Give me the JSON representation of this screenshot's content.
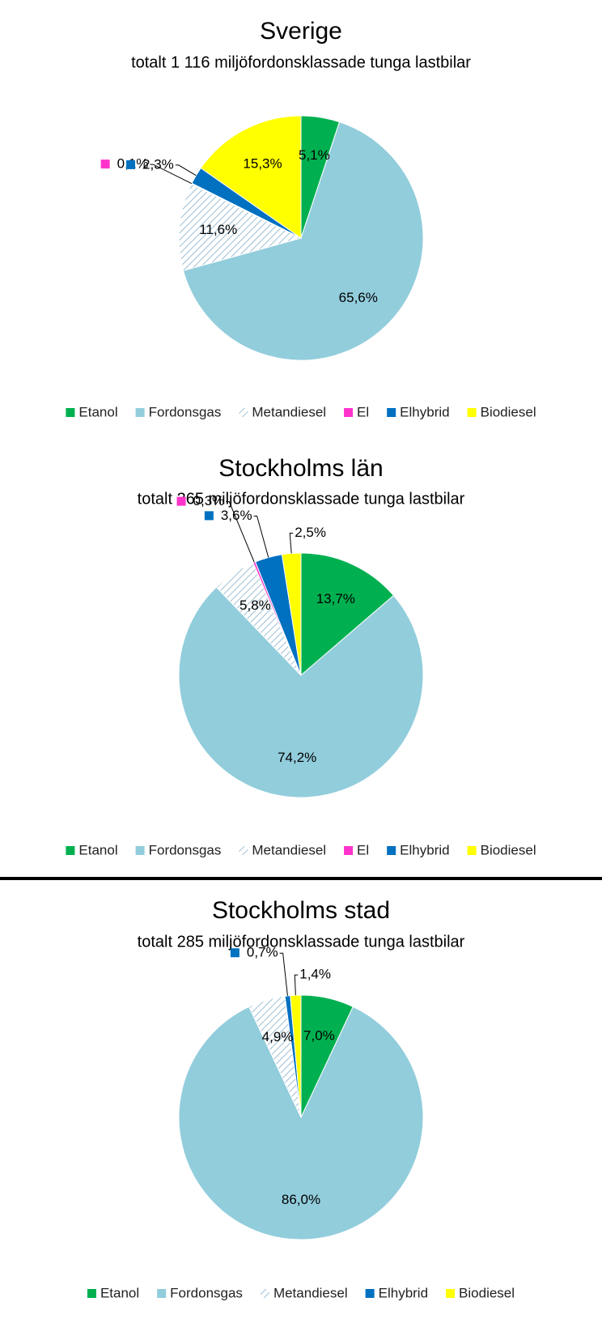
{
  "chart_data": [
    {
      "type": "pie",
      "title": "Sverige",
      "subtitle": "totalt 1 116 miljöfordonsklassade tunga lastbilar",
      "categories": [
        "Etanol",
        "Fordonsgas",
        "Metandiesel",
        "El",
        "Elhybrid",
        "Biodiesel"
      ],
      "values": [
        5.1,
        65.6,
        11.6,
        0.1,
        2.3,
        15.3
      ],
      "value_labels": [
        "5,1%",
        "65,6%",
        "11,6%",
        "0,1%",
        "2,3%",
        "15,3%"
      ],
      "colors": [
        "#00b050",
        "#92cddc",
        "#9dbfd4",
        "#ff33cc",
        "#0070c0",
        "#ffff00"
      ],
      "patterns": [
        "solid",
        "solid",
        "hatch",
        "solid",
        "solid",
        "solid"
      ],
      "legend": "bottom"
    },
    {
      "type": "pie",
      "title": "Stockholms län",
      "subtitle": "totalt 365 miljöfordonsklassade tunga lastbilar",
      "categories": [
        "Etanol",
        "Fordonsgas",
        "Metandiesel",
        "El",
        "Elhybrid",
        "Biodiesel"
      ],
      "values": [
        13.7,
        74.2,
        5.8,
        0.3,
        3.6,
        2.5
      ],
      "value_labels": [
        "13,7%",
        "74,2%",
        "5,8%",
        "0,3%",
        "3,6%",
        "2,5%"
      ],
      "colors": [
        "#00b050",
        "#92cddc",
        "#9dbfd4",
        "#ff33cc",
        "#0070c0",
        "#ffff00"
      ],
      "patterns": [
        "solid",
        "solid",
        "hatch",
        "solid",
        "solid",
        "solid"
      ],
      "legend": "bottom"
    },
    {
      "type": "pie",
      "title": "Stockholms stad",
      "subtitle": "totalt 285 miljöfordonsklassade tunga lastbilar",
      "categories": [
        "Etanol",
        "Fordonsgas",
        "Metandiesel",
        "Elhybrid",
        "Biodiesel"
      ],
      "values": [
        7.0,
        86.0,
        4.9,
        0.7,
        1.4
      ],
      "value_labels": [
        "7,0%",
        "86,0%",
        "4,9%",
        "0,7%",
        "1,4%"
      ],
      "colors": [
        "#00b050",
        "#92cddc",
        "#9dbfd4",
        "#0070c0",
        "#ffff00"
      ],
      "patterns": [
        "solid",
        "solid",
        "hatch",
        "solid",
        "solid"
      ],
      "legend": "bottom"
    }
  ]
}
